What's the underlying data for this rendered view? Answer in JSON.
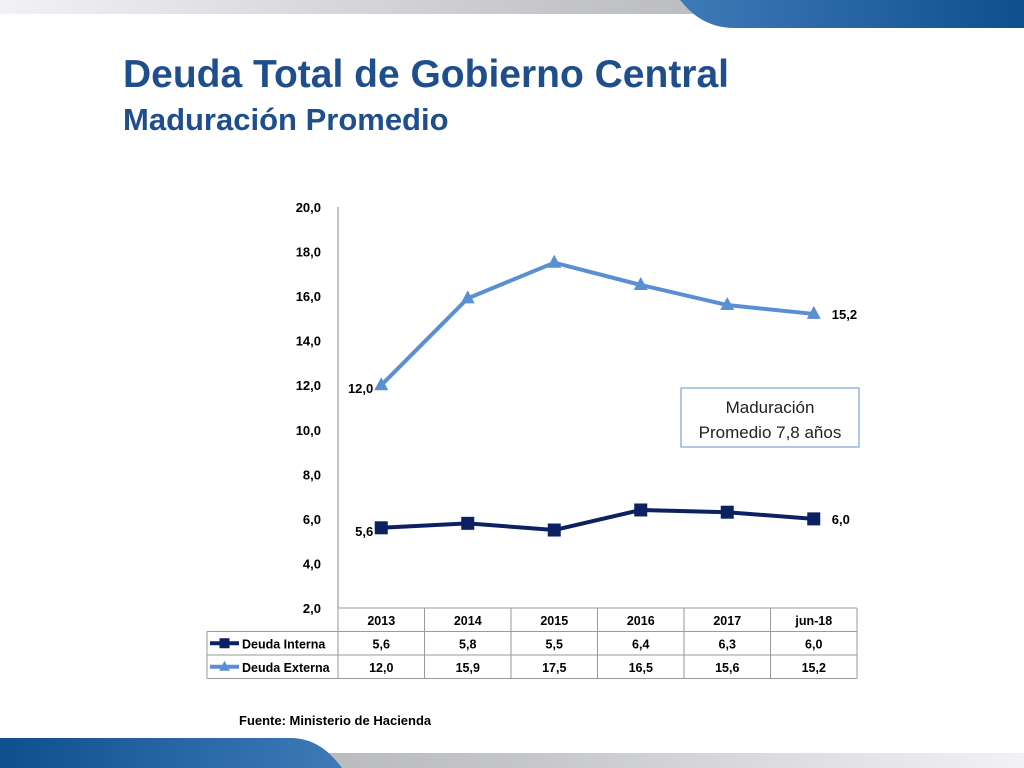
{
  "slide": {
    "title": "Deuda Total de Gobierno Central",
    "subtitle": "Maduración Promedio",
    "source": "Fuente: Ministerio de Hacienda"
  },
  "colors": {
    "title": "#1f4e8c",
    "interna": "#0b2161",
    "externa": "#5b8fd4",
    "banner_gray": "#b8b9bd",
    "banner_blue": "#1e5e9e"
  },
  "chart_data": {
    "type": "line",
    "categories": [
      "2013",
      "2014",
      "2015",
      "2016",
      "2017",
      "jun-18"
    ],
    "series": [
      {
        "name": "Deuda Interna",
        "values": [
          5.6,
          5.8,
          5.5,
          6.4,
          6.3,
          6.0
        ],
        "marker": "square"
      },
      {
        "name": "Deuda Externa",
        "values": [
          12.0,
          15.9,
          17.5,
          16.5,
          15.6,
          15.2
        ],
        "marker": "triangle"
      }
    ],
    "value_labels": [
      {
        "series": 0,
        "index": 0,
        "text": "5,6"
      },
      {
        "series": 0,
        "index": 5,
        "text": "6,0"
      },
      {
        "series": 1,
        "index": 0,
        "text": "12,0"
      },
      {
        "series": 1,
        "index": 5,
        "text": "15,2"
      }
    ],
    "yticks": [
      "2,0",
      "4,0",
      "6,0",
      "8,0",
      "10,0",
      "12,0",
      "14,0",
      "16,0",
      "18,0",
      "20,0"
    ],
    "ylim": [
      2,
      20
    ],
    "table": {
      "rows": [
        {
          "label": "Deuda Interna",
          "cells": [
            "5,6",
            "5,8",
            "5,5",
            "6,4",
            "6,3",
            "6,0"
          ]
        },
        {
          "label": "Deuda Externa",
          "cells": [
            "12,0",
            "15,9",
            "17,5",
            "16,5",
            "15,6",
            "15,2"
          ]
        }
      ]
    },
    "annotation": [
      "Maduración",
      "Promedio 7,8 años"
    ],
    "grid": false,
    "legend": "data-table"
  }
}
